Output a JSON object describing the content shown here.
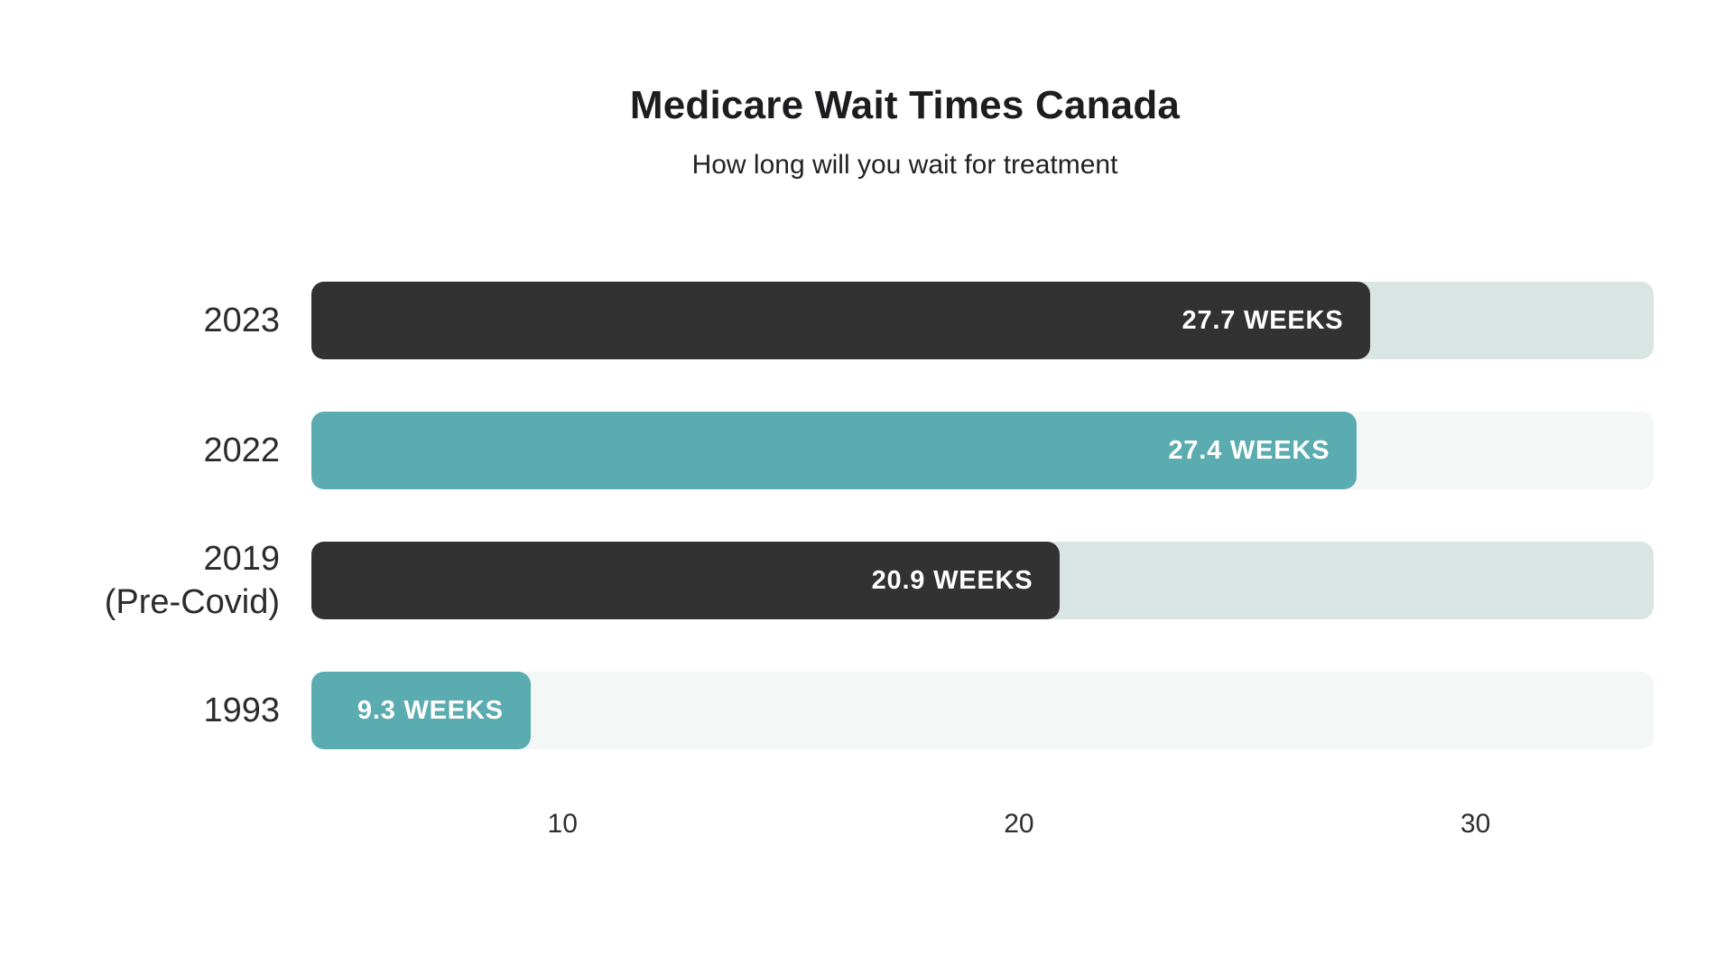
{
  "header": {
    "title": "Medicare Wait Times Canada",
    "subtitle": "How long will you wait for treatment"
  },
  "chart_data": {
    "type": "bar",
    "orientation": "horizontal",
    "title": "Medicare Wait Times Canada",
    "subtitle": "How long will you wait for treatment",
    "unit": "weeks",
    "categories": [
      "2023",
      "2022",
      "2019 (Pre-Covid)",
      "1993"
    ],
    "values": [
      27.7,
      27.4,
      20.9,
      9.3
    ],
    "rows": [
      {
        "label_lines": [
          "2023"
        ],
        "value": 27.7,
        "bar_label": "27.7 WEEKS",
        "bar_color": "#323232",
        "track_color": "#d9e5e3"
      },
      {
        "label_lines": [
          "2022"
        ],
        "value": 27.4,
        "bar_label": "27.4 WEEKS",
        "bar_color": "#5bacb0",
        "track_color": "#f3f7f6"
      },
      {
        "label_lines": [
          "2019",
          "(Pre-Covid)"
        ],
        "value": 20.9,
        "bar_label": "20.9 WEEKS",
        "bar_color": "#323232",
        "track_color": "#d9e5e3"
      },
      {
        "label_lines": [
          "1993"
        ],
        "value": 9.3,
        "bar_label": "9.3 WEEKS",
        "bar_color": "#5bacb0",
        "track_color": "#f3f7f6"
      }
    ],
    "x_ticks": [
      10,
      20,
      30
    ],
    "axis": {
      "display_min": 4.5,
      "display_max": 33.9
    },
    "xlabel": "",
    "ylabel": "",
    "grid": false,
    "legend": false,
    "colors": {
      "bar_dark": "#323232",
      "bar_teal": "#5bacb0",
      "track_behind_dark": "#d9e5e3",
      "track_behind_teal": "#f3f7f6",
      "value_text": "#ffffff",
      "title_text": "#1d1d1f",
      "axis_text": "#2e2e2e"
    }
  }
}
